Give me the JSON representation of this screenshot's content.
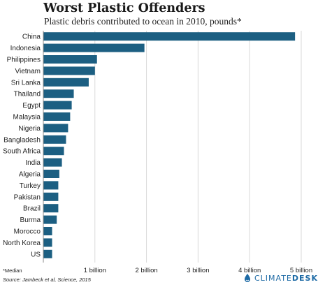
{
  "title": "Worst Plastic Offenders",
  "subtitle": "Plastic debris contributed to ocean in 2010, pounds*",
  "footnote": "*Median",
  "source": "Source: Jambeck et al, Science, 2015",
  "logo": {
    "part1": "CLIMATE",
    "part2": "DESK",
    "icon": "water-drop-icon"
  },
  "colors": {
    "bar": "#1c5f82",
    "grid": "#d9d9d9",
    "axis": "#888888",
    "text": "#222222"
  },
  "chart_data": {
    "type": "bar",
    "orientation": "horizontal",
    "title": "Worst Plastic Offenders",
    "subtitle": "Plastic debris contributed to ocean in 2010, pounds*",
    "categories": [
      "China",
      "Indonesia",
      "Philippines",
      "Vietnam",
      "Sri Lanka",
      "Thailand",
      "Egypt",
      "Malaysia",
      "Nigeria",
      "Bangladesh",
      "South Africa",
      "India",
      "Algeria",
      "Turkey",
      "Pakistan",
      "Brazil",
      "Burma",
      "Morocco",
      "North Korea",
      "US"
    ],
    "values": [
      4880000000,
      1960000000,
      1040000000,
      1000000000,
      880000000,
      590000000,
      550000000,
      520000000,
      480000000,
      440000000,
      400000000,
      360000000,
      310000000,
      290000000,
      290000000,
      290000000,
      260000000,
      170000000,
      170000000,
      170000000
    ],
    "xlim": [
      0,
      5000000000
    ],
    "xticks": [
      1000000000,
      2000000000,
      3000000000,
      4000000000,
      5000000000
    ],
    "xtick_labels": [
      "1 billion",
      "2 billion",
      "3 billion",
      "4 billion",
      "5 billion"
    ],
    "grid": true
  }
}
